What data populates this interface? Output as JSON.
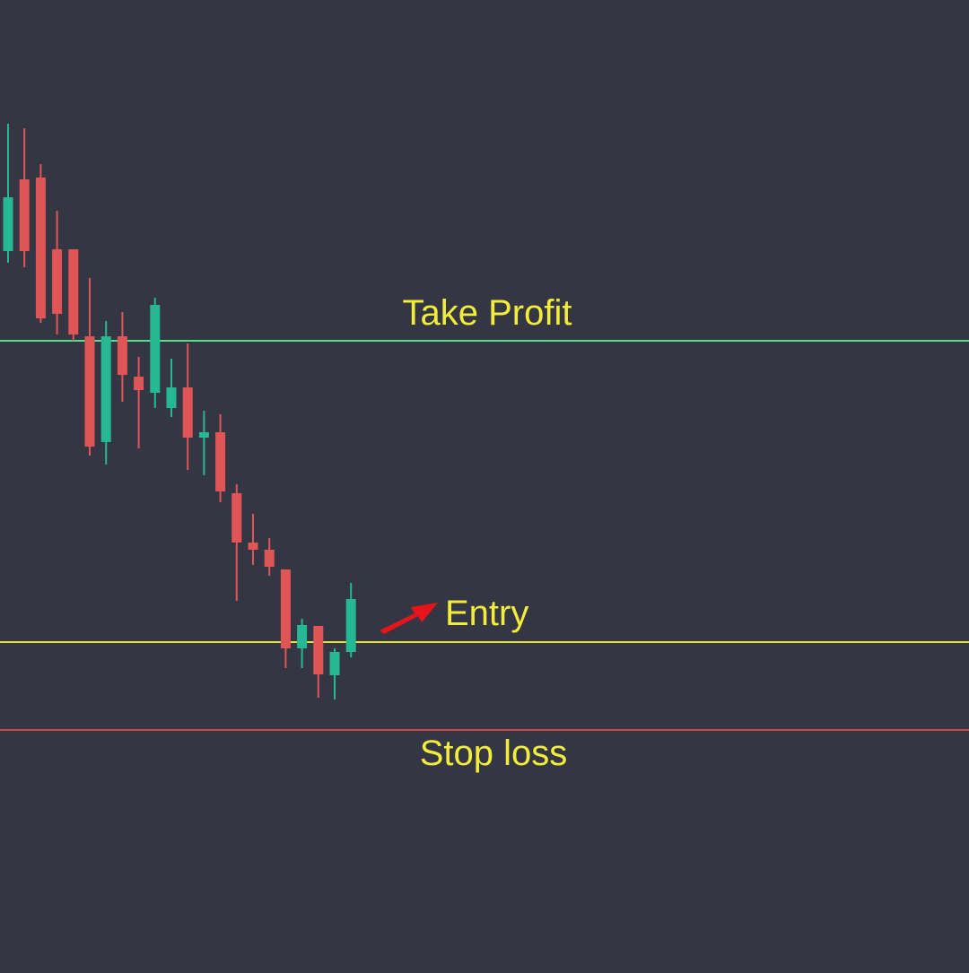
{
  "chart_data": {
    "type": "candlestick",
    "title": "",
    "xlabel": "",
    "ylabel": "",
    "ylim": [
      0,
      1080
    ],
    "grid": false,
    "legend": "none",
    "candles": [
      {
        "open": 800,
        "close": 860,
        "high": 942,
        "low": 787
      },
      {
        "open": 880,
        "close": 800,
        "high": 937,
        "low": 782
      },
      {
        "open": 882,
        "close": 725,
        "high": 897,
        "low": 720
      },
      {
        "open": 802,
        "close": 730,
        "high": 845,
        "low": 707
      },
      {
        "open": 802,
        "close": 707,
        "high": 802,
        "low": 700
      },
      {
        "open": 705,
        "close": 582,
        "high": 770,
        "low": 572
      },
      {
        "open": 587,
        "close": 705,
        "high": 722,
        "low": 562
      },
      {
        "open": 705,
        "close": 662,
        "high": 732,
        "low": 632
      },
      {
        "open": 660,
        "close": 645,
        "high": 682,
        "low": 580
      },
      {
        "open": 642,
        "close": 740,
        "high": 748,
        "low": 625
      },
      {
        "open": 625,
        "close": 648,
        "high": 680,
        "low": 615
      },
      {
        "open": 648,
        "close": 592,
        "high": 697,
        "low": 556
      },
      {
        "open": 592,
        "close": 598,
        "high": 622,
        "low": 550
      },
      {
        "open": 598,
        "close": 532,
        "high": 618,
        "low": 520
      },
      {
        "open": 530,
        "close": 475,
        "high": 540,
        "low": 410
      },
      {
        "open": 475,
        "close": 467,
        "high": 507,
        "low": 450
      },
      {
        "open": 467,
        "close": 448,
        "high": 480,
        "low": 438
      },
      {
        "open": 445,
        "close": 357,
        "high": 445,
        "low": 335
      },
      {
        "open": 357,
        "close": 383,
        "high": 390,
        "low": 335
      },
      {
        "open": 382,
        "close": 328,
        "high": 382,
        "low": 302
      },
      {
        "open": 327,
        "close": 353,
        "high": 357,
        "low": 300
      },
      {
        "open": 353,
        "close": 412,
        "high": 430,
        "low": 347
      }
    ],
    "levels": [
      {
        "name": "take_profit",
        "label": "Take Profit",
        "value": 700,
        "color": "#4ee08a"
      },
      {
        "name": "entry",
        "label": "Entry",
        "value": 364,
        "color": "#e6e23a"
      },
      {
        "name": "stop_loss",
        "label": "Stop loss",
        "value": 266,
        "color": "#c94a4a"
      }
    ],
    "colors": {
      "up": "#26b893",
      "down": "#e05555",
      "label": "#f2ec3a",
      "arrow": "#e8141a",
      "background": "#353643"
    }
  }
}
